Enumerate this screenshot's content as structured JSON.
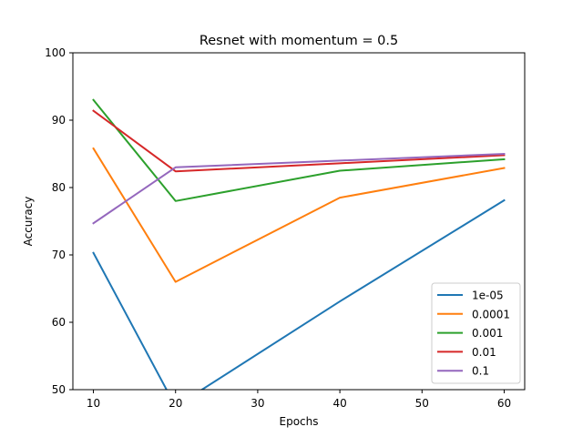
{
  "chart_data": {
    "type": "line",
    "title": "Resnet with momentum = 0.5",
    "xlabel": "Epochs",
    "ylabel": "Accuracy",
    "xlim": [
      7.5,
      62.5
    ],
    "ylim": [
      50,
      100
    ],
    "xticks": [
      10,
      20,
      30,
      40,
      50,
      60
    ],
    "yticks": [
      50,
      60,
      70,
      80,
      90,
      100
    ],
    "grid": false,
    "legend_position": "lower-right",
    "x": [
      10,
      20,
      40,
      60
    ],
    "series": [
      {
        "name": "1e-05",
        "color": "#1f77b4",
        "values": [
          70.3,
          47.5,
          63.1,
          78.1
        ]
      },
      {
        "name": "0.0001",
        "color": "#ff7f0e",
        "values": [
          85.8,
          66.0,
          78.5,
          82.9
        ]
      },
      {
        "name": "0.001",
        "color": "#2ca02c",
        "values": [
          93.0,
          78.0,
          82.5,
          84.2
        ]
      },
      {
        "name": "0.01",
        "color": "#d62728",
        "values": [
          91.4,
          82.4,
          83.6,
          84.8
        ]
      },
      {
        "name": "0.1",
        "color": "#9467bd",
        "values": [
          74.7,
          83.0,
          84.0,
          85.0
        ]
      }
    ]
  }
}
